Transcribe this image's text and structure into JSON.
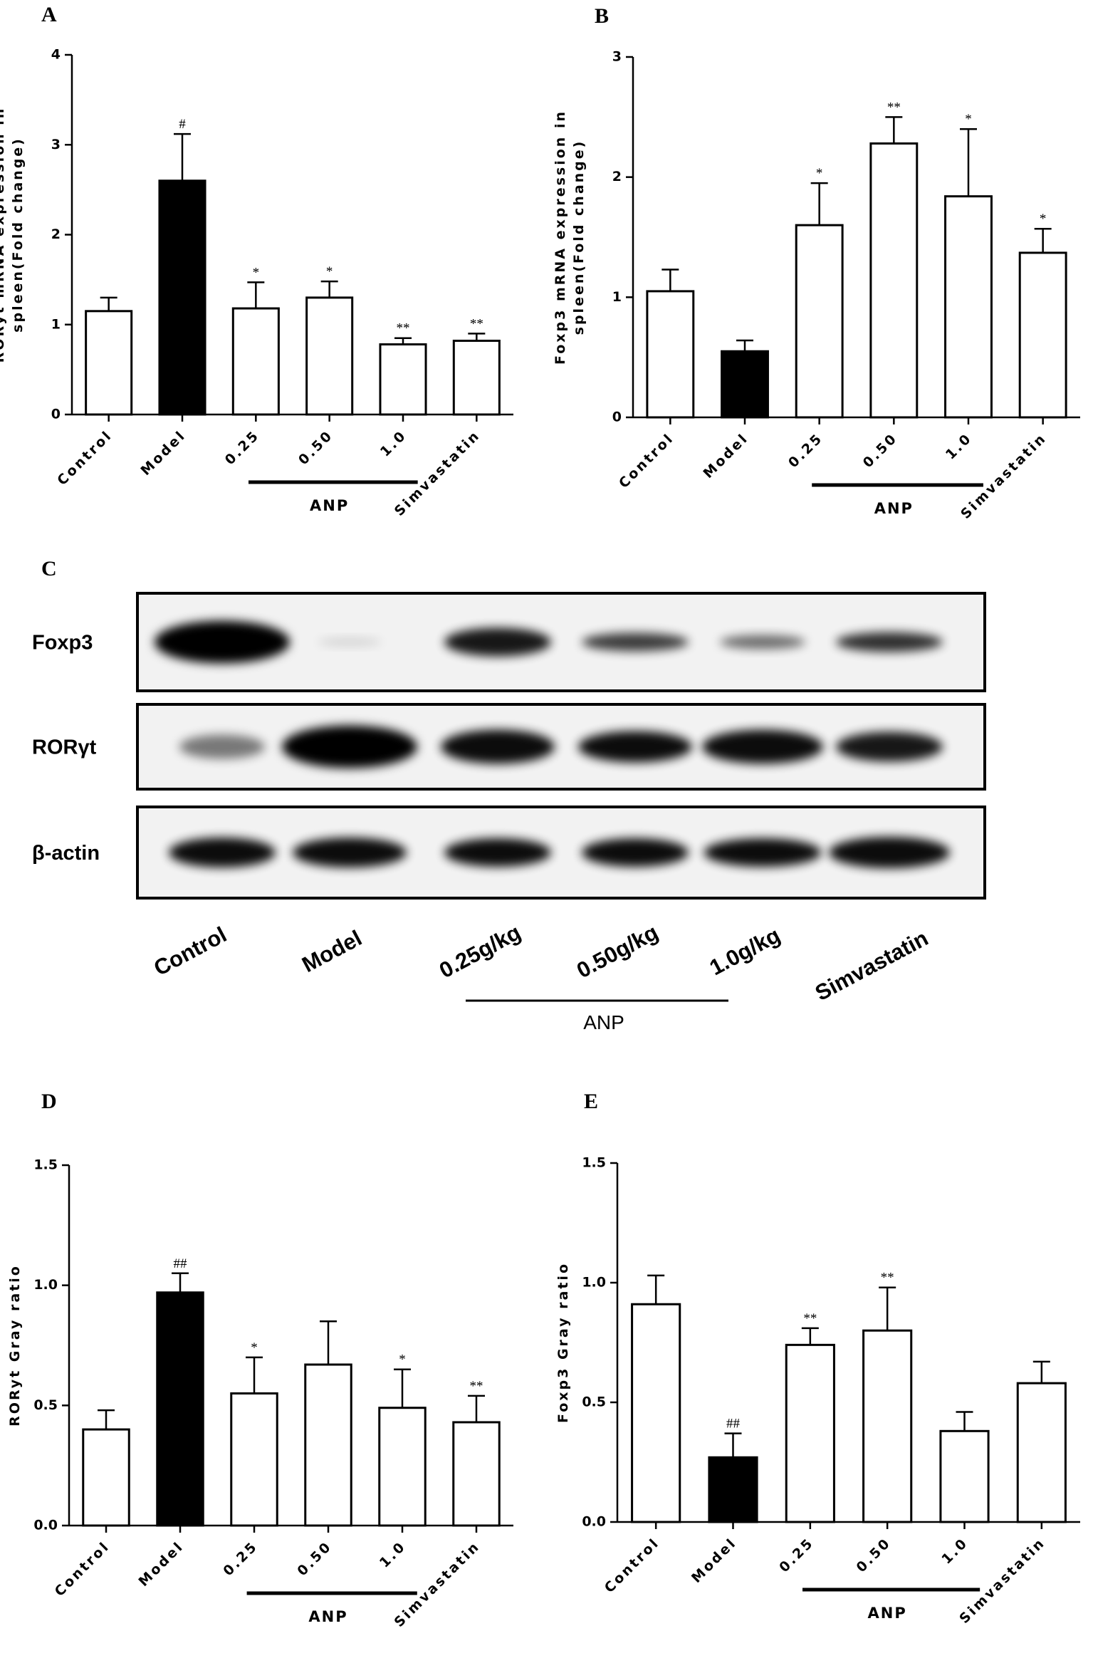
{
  "chart_data": [
    {
      "type": "bar",
      "panel": "A",
      "y_label": [
        "RORyt mRNA expression in",
        "spleen(Fold change)"
      ],
      "categories": [
        "Control",
        "Model",
        "0.25",
        "0.50",
        "1.0",
        "Simvastatin"
      ],
      "values": [
        1.15,
        2.6,
        1.18,
        1.3,
        0.78,
        0.82
      ],
      "errors": [
        0.15,
        0.52,
        0.29,
        0.18,
        0.07,
        0.08
      ],
      "colors": [
        "#ffffff",
        "#000000",
        "#ffffff",
        "#ffffff",
        "#ffffff",
        "#ffffff"
      ],
      "annotations": [
        null,
        "#",
        "*",
        "*",
        "**",
        "**"
      ],
      "group_label": "ANP",
      "ylim": [
        0,
        4
      ],
      "yticks": [
        0,
        1,
        2,
        3,
        4
      ]
    },
    {
      "type": "bar",
      "panel": "B",
      "y_label": [
        "Foxp3 mRNA expression in",
        "spleen(Fold change)"
      ],
      "categories": [
        "Control",
        "Model",
        "0.25",
        "0.50",
        "1.0",
        "Simvastatin"
      ],
      "values": [
        1.05,
        0.55,
        1.6,
        2.28,
        1.84,
        1.37
      ],
      "errors": [
        0.18,
        0.09,
        0.35,
        0.22,
        0.56,
        0.2
      ],
      "colors": [
        "#ffffff",
        "#000000",
        "#ffffff",
        "#ffffff",
        "#ffffff",
        "#ffffff"
      ],
      "annotations": [
        null,
        null,
        "*",
        "**",
        "*",
        "*"
      ],
      "group_label": "ANP",
      "ylim": [
        0,
        3
      ],
      "yticks": [
        0,
        1,
        2,
        3
      ]
    },
    {
      "type": "bar",
      "panel": "D",
      "y_label": [
        "RORyt Gray ratio"
      ],
      "categories": [
        "Control",
        "Model",
        "0.25",
        "0.50",
        "1.0",
        "Simvastatin"
      ],
      "values": [
        0.4,
        0.97,
        0.55,
        0.67,
        0.49,
        0.43
      ],
      "errors": [
        0.08,
        0.08,
        0.15,
        0.18,
        0.16,
        0.11
      ],
      "colors": [
        "#ffffff",
        "#000000",
        "#ffffff",
        "#ffffff",
        "#ffffff",
        "#ffffff"
      ],
      "annotations": [
        null,
        "##",
        "*",
        null,
        "*",
        "**"
      ],
      "group_label": "ANP",
      "ylim": [
        0,
        1.5
      ],
      "yticks": [
        {
          "value": 0,
          "label": "0.0"
        },
        0.5,
        {
          "value": 1,
          "label": "1.0"
        },
        1.5
      ]
    },
    {
      "type": "bar",
      "panel": "E",
      "y_label": [
        "Foxp3 Gray ratio"
      ],
      "categories": [
        "Control",
        "Model",
        "0.25",
        "0.50",
        "1.0",
        "Simvastatin"
      ],
      "values": [
        0.91,
        0.27,
        0.74,
        0.8,
        0.38,
        0.58
      ],
      "errors": [
        0.12,
        0.1,
        0.07,
        0.18,
        0.08,
        0.09
      ],
      "colors": [
        "#ffffff",
        "#000000",
        "#ffffff",
        "#ffffff",
        "#ffffff",
        "#ffffff"
      ],
      "annotations": [
        null,
        "##",
        "**",
        "**",
        null,
        null
      ],
      "group_label": "ANP",
      "ylim": [
        0,
        1.5
      ],
      "yticks": [
        {
          "value": 0,
          "label": "0.0"
        },
        0.5,
        {
          "value": 1,
          "label": "1.0"
        },
        1.5
      ]
    }
  ],
  "blot": {
    "panel": "C",
    "rows": [
      "Foxp3",
      "RORγt",
      "β-actin"
    ],
    "lanes": [
      "Control",
      "Model",
      "0.25g/kg",
      "0.50g/kg",
      "1.0g/kg",
      "Simvastatin"
    ],
    "group_label": "ANP"
  }
}
